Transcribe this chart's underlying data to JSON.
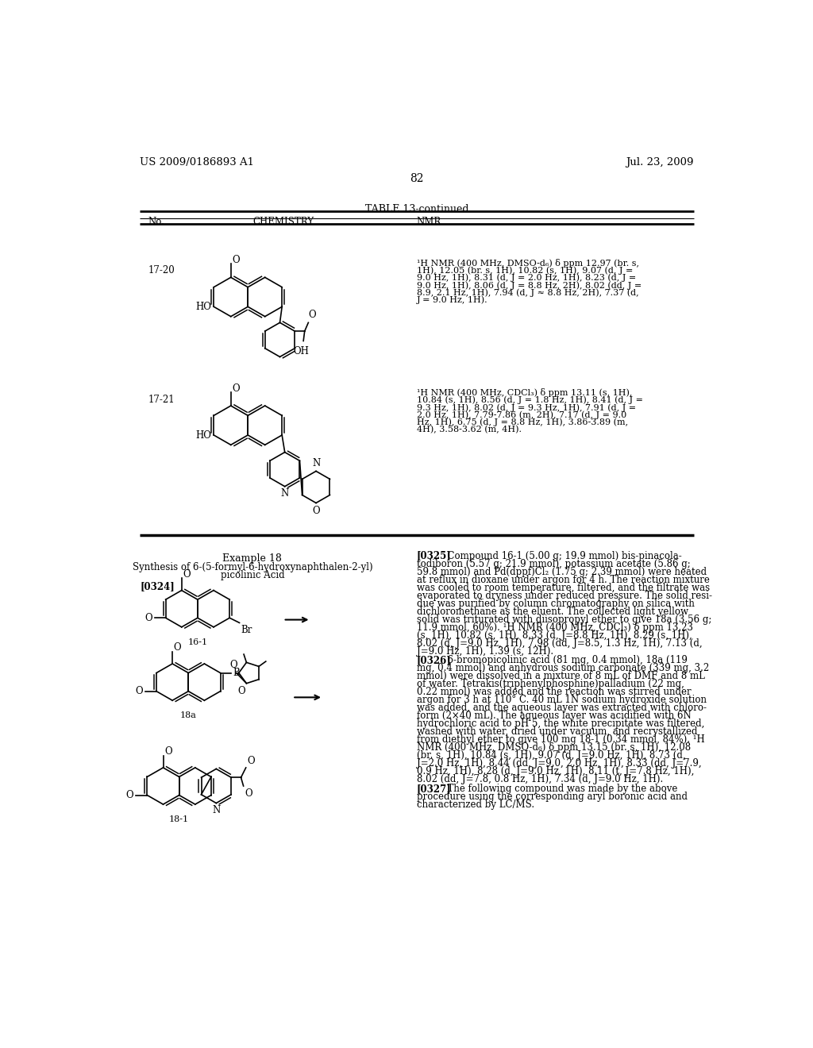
{
  "page_number": "82",
  "patent_left": "US 2009/0186893 A1",
  "patent_right": "Jul. 23, 2009",
  "table_title": "TABLE 13-continued",
  "bg_color": "#ffffff"
}
